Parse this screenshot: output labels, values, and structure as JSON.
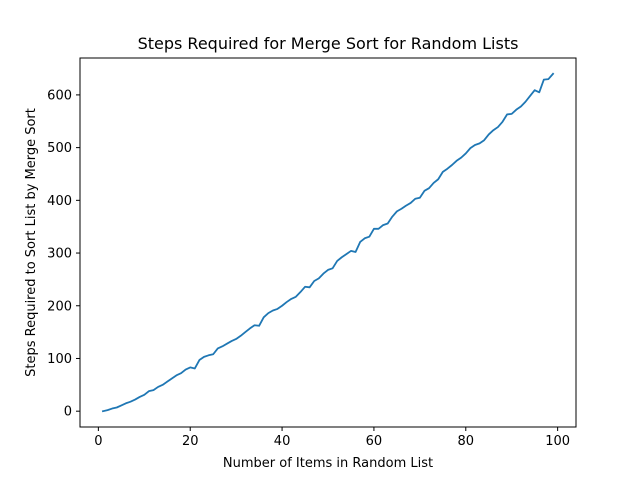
{
  "chart_data": {
    "type": "line",
    "title": "Steps Required for Merge Sort for Random Lists",
    "xlabel": "Number of Items in Random List",
    "ylabel": "Steps Required to Sort List by Merge Sort",
    "xlim": [
      -4,
      104
    ],
    "ylim": [
      -30,
      670
    ],
    "x_ticks": [
      0,
      20,
      40,
      60,
      80,
      100
    ],
    "y_ticks": [
      0,
      100,
      200,
      300,
      400,
      500,
      600
    ],
    "grid": false,
    "series": [
      {
        "color": "#1f77b4",
        "x": [
          1,
          2,
          3,
          4,
          5,
          6,
          7,
          8,
          9,
          10,
          11,
          12,
          13,
          14,
          15,
          16,
          17,
          18,
          19,
          20,
          21,
          22,
          23,
          24,
          25,
          26,
          27,
          28,
          29,
          30,
          31,
          32,
          33,
          34,
          35,
          36,
          37,
          38,
          39,
          40,
          41,
          42,
          43,
          44,
          45,
          46,
          47,
          48,
          49,
          50,
          51,
          52,
          53,
          54,
          55,
          56,
          57,
          58,
          59,
          60,
          61,
          62,
          63,
          64,
          65,
          66,
          67,
          68,
          69,
          70,
          71,
          72,
          73,
          74,
          75,
          76,
          77,
          78,
          79,
          80,
          81,
          82,
          83,
          84,
          85,
          86,
          87,
          88,
          89,
          90,
          91,
          92,
          93,
          94,
          95,
          96,
          97,
          98,
          99
        ],
        "values": [
          0,
          2,
          5,
          7,
          11,
          15,
          18,
          22,
          27,
          31,
          38,
          40,
          46,
          50,
          56,
          62,
          68,
          72,
          79,
          83,
          81,
          97,
          103,
          106,
          108,
          119,
          123,
          128,
          133,
          137,
          143,
          150,
          157,
          163,
          162,
          178,
          186,
          191,
          194,
          200,
          207,
          213,
          217,
          226,
          236,
          235,
          247,
          252,
          261,
          268,
          271,
          285,
          292,
          298,
          304,
          302,
          321,
          328,
          331,
          346,
          346,
          353,
          356,
          369,
          379,
          384,
          390,
          395,
          403,
          405,
          418,
          423,
          433,
          440,
          454,
          460,
          467,
          475,
          481,
          489,
          499,
          505,
          508,
          514,
          525,
          533,
          539,
          549,
          563,
          564,
          572,
          578,
          587,
          598,
          609,
          605,
          629,
          630,
          640
        ]
      }
    ]
  }
}
